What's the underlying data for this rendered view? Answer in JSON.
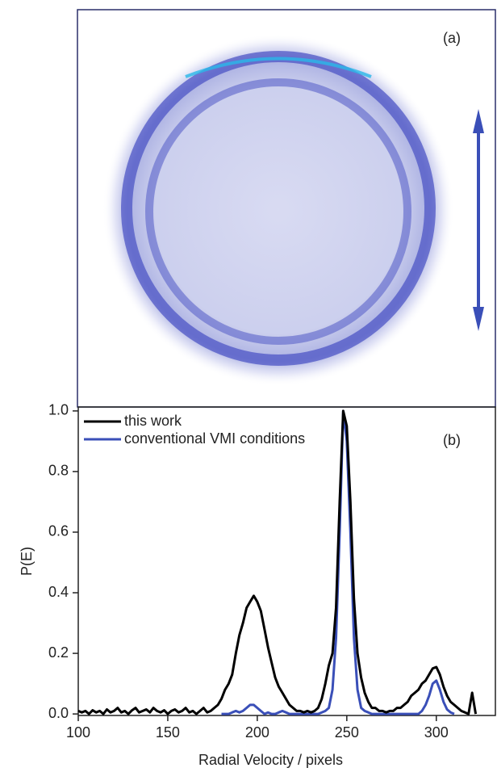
{
  "panel_label": "(a)",
  "chart_data": {
    "type": "line",
    "annotation": "(b)",
    "x_label": "Radial Velocity / pixels",
    "y_label": "P(E)",
    "xlim": [
      100,
      333
    ],
    "ylim": [
      -0.005,
      1.013
    ],
    "xticks": [
      100,
      150,
      200,
      250,
      300
    ],
    "yticks": [
      {
        "value": 0,
        "label": "0.0"
      },
      {
        "value": 0.2,
        "label": "0.2"
      },
      {
        "value": 0.4,
        "label": "0.4"
      },
      {
        "value": 0.6,
        "label": "0.6"
      },
      {
        "value": 0.8,
        "label": "0.8"
      },
      {
        "value": 1,
        "label": "1.0"
      }
    ],
    "x": [
      100,
      102,
      104,
      106,
      108,
      110,
      112,
      114,
      116,
      118,
      120,
      122,
      124,
      126,
      128,
      130,
      132,
      134,
      136,
      138,
      140,
      142,
      144,
      146,
      148,
      150,
      152,
      154,
      156,
      158,
      160,
      162,
      164,
      166,
      168,
      170,
      172,
      174,
      176,
      178,
      180,
      182,
      184,
      186,
      188,
      190,
      192,
      194,
      196,
      198,
      200,
      202,
      204,
      206,
      208,
      210,
      212,
      214,
      216,
      218,
      220,
      222,
      224,
      226,
      228,
      230,
      232,
      234,
      236,
      238,
      240,
      242,
      244,
      246,
      248,
      250,
      252,
      254,
      256,
      258,
      260,
      262,
      264,
      266,
      268,
      270,
      272,
      274,
      276,
      278,
      280,
      282,
      284,
      286,
      288,
      290,
      292,
      294,
      296,
      298,
      300,
      302,
      304,
      306,
      308,
      310,
      312,
      314,
      316,
      318,
      320,
      322
    ],
    "series": [
      {
        "name": "this work",
        "color": "#000000",
        "values": [
          0.01,
          0.005,
          0.01,
          0,
          0.012,
          0.005,
          0.01,
          0,
          0.015,
          0.005,
          0.01,
          0.02,
          0.005,
          0.01,
          0,
          0.012,
          0.02,
          0.005,
          0.01,
          0.015,
          0.005,
          0.02,
          0.01,
          0.005,
          0.012,
          0,
          0.01,
          0.015,
          0.005,
          0.01,
          0.02,
          0.005,
          0.01,
          0,
          0.01,
          0.02,
          0.005,
          0.01,
          0.02,
          0.03,
          0.05,
          0.08,
          0.1,
          0.13,
          0.2,
          0.26,
          0.3,
          0.35,
          0.37,
          0.39,
          0.37,
          0.34,
          0.28,
          0.22,
          0.17,
          0.12,
          0.09,
          0.07,
          0.05,
          0.03,
          0.02,
          0.01,
          0.01,
          0.005,
          0.01,
          0.005,
          0.01,
          0.02,
          0.05,
          0.1,
          0.16,
          0.2,
          0.35,
          0.7,
          1.0,
          0.95,
          0.7,
          0.38,
          0.2,
          0.12,
          0.07,
          0.04,
          0.02,
          0.02,
          0.01,
          0.01,
          0.005,
          0.01,
          0.01,
          0.02,
          0.02,
          0.03,
          0.04,
          0.06,
          0.07,
          0.08,
          0.1,
          0.11,
          0.13,
          0.15,
          0.155,
          0.13,
          0.09,
          0.06,
          0.04,
          0.03,
          0.02,
          0.01,
          0.005,
          0,
          0.07,
          0
        ]
      },
      {
        "name": "conventional VMI conditions",
        "color": "#3a4fb8",
        "values": [
          null,
          null,
          null,
          null,
          null,
          null,
          null,
          null,
          null,
          null,
          null,
          null,
          null,
          null,
          null,
          null,
          null,
          null,
          null,
          null,
          null,
          null,
          null,
          null,
          null,
          null,
          null,
          null,
          null,
          null,
          null,
          null,
          null,
          null,
          null,
          null,
          null,
          null,
          null,
          null,
          0,
          0,
          0,
          0.005,
          0.01,
          0.005,
          0.01,
          0.02,
          0.03,
          0.03,
          0.02,
          0.01,
          0,
          0.005,
          0,
          0,
          0.005,
          0.01,
          0.005,
          0,
          0,
          0,
          0,
          0,
          0,
          0,
          0,
          0,
          0.005,
          0.01,
          0.02,
          0.08,
          0.25,
          0.6,
          1.0,
          0.9,
          0.6,
          0.25,
          0.08,
          0.02,
          0.01,
          0.005,
          0,
          0,
          0,
          0,
          0,
          0,
          0,
          0,
          0,
          0,
          0,
          0,
          0,
          0,
          0.01,
          0.03,
          0.06,
          0.1,
          0.11,
          0.08,
          0.04,
          0.015,
          0.005,
          0,
          null,
          null,
          null,
          null,
          null,
          null
        ]
      }
    ]
  }
}
